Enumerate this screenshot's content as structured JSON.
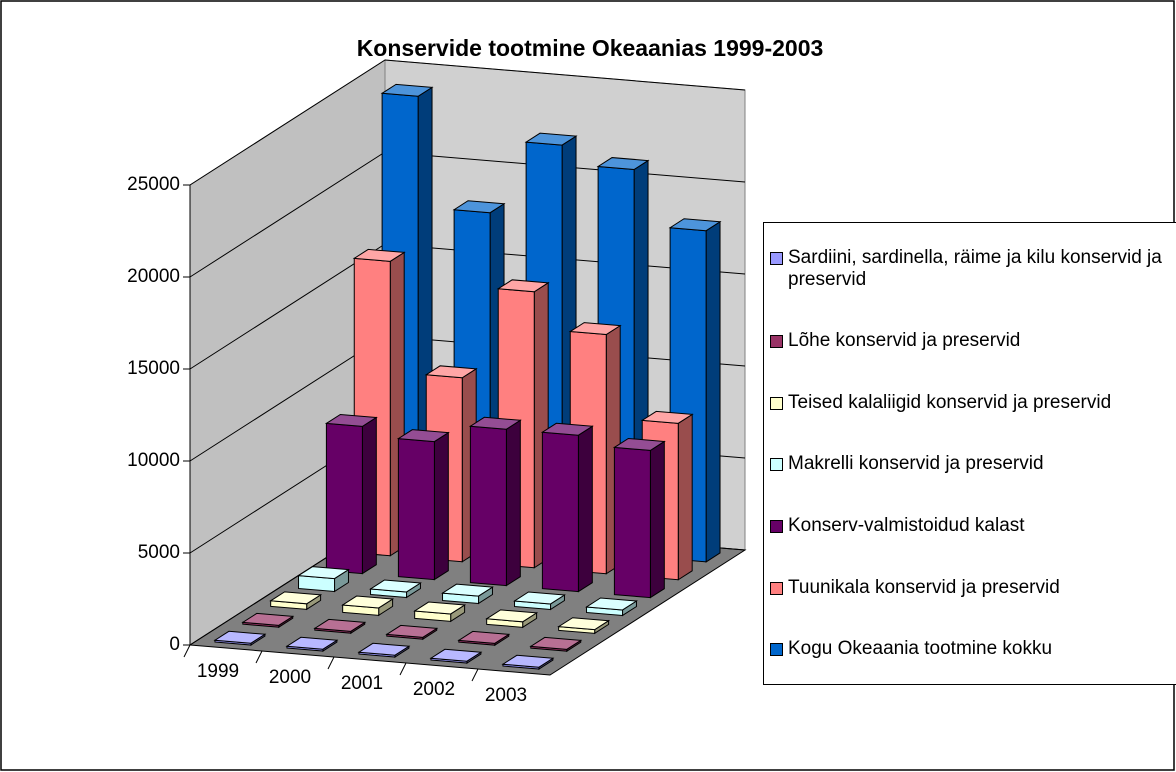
{
  "chart_data": {
    "type": "bar3d",
    "title": "Konservide tootmine Okeaanias 1999-2003",
    "categories": [
      "1999",
      "2000",
      "2001",
      "2002",
      "2003"
    ],
    "series": [
      {
        "name": "Sardiini, sardinella, räime ja kilu konservid ja preservid",
        "color": "#9999ff",
        "values": [
          100,
          100,
          100,
          100,
          100
        ]
      },
      {
        "name": "Lõhe konservid ja preservid",
        "color": "#993366",
        "values": [
          100,
          100,
          100,
          100,
          100
        ]
      },
      {
        "name": "Teised kalaliigid konservid ja preservid",
        "color": "#ffffcc",
        "values": [
          300,
          400,
          400,
          300,
          200
        ]
      },
      {
        "name": "Makrelli konservid ja preservid",
        "color": "#ccffff",
        "values": [
          700,
          300,
          400,
          300,
          300
        ]
      },
      {
        "name": "Konserv-valmistoidud kalast",
        "color": "#660066",
        "values": [
          8000,
          7500,
          8500,
          8500,
          8000
        ]
      },
      {
        "name": "Tuunikala konservid ja preservid",
        "color": "#ff8080",
        "values": [
          16000,
          10000,
          15000,
          13000,
          8500
        ]
      },
      {
        "name": "Kogu Okeaania tootmine kokku",
        "color": "#0066cc",
        "values": [
          24000,
          18000,
          22000,
          21000,
          18000
        ]
      }
    ],
    "ylim": [
      0,
      25000
    ],
    "yticks": [
      0,
      5000,
      10000,
      15000,
      20000,
      25000
    ],
    "grid": true,
    "legend": "right"
  }
}
